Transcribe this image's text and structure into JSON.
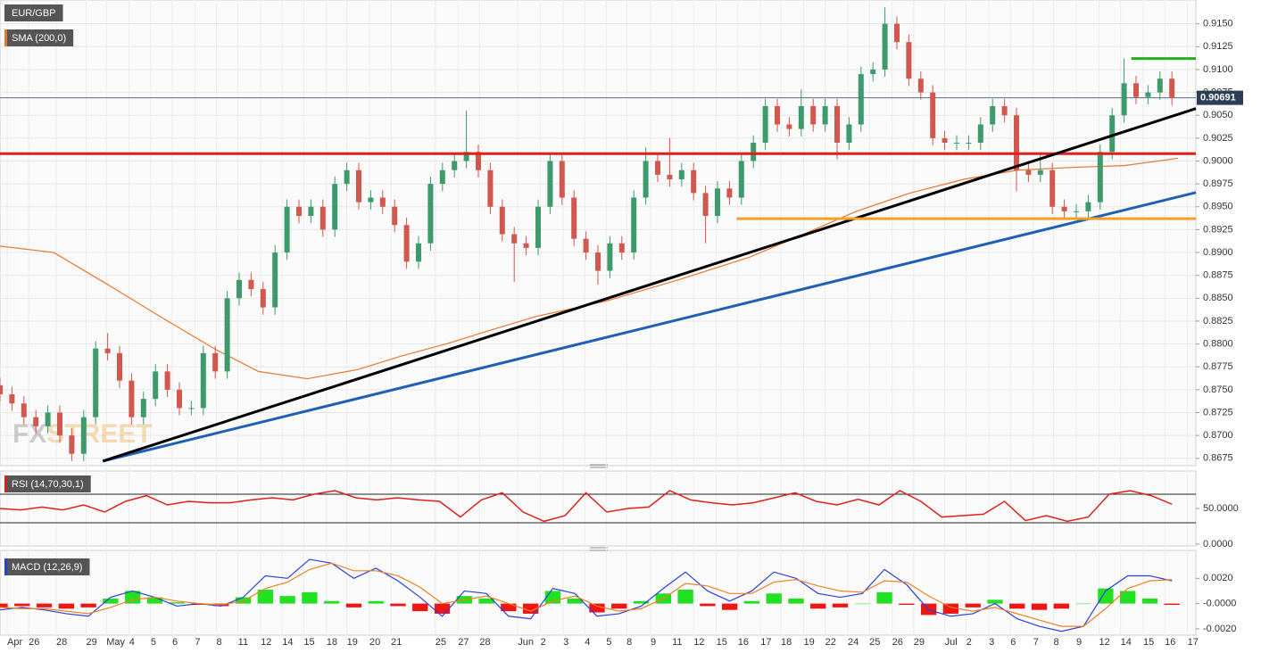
{
  "chart_data": {
    "type": "candlestick",
    "title": "EUR/GBP",
    "watermark": [
      "FX",
      "STREET"
    ],
    "up_color": "#3d9a6a",
    "down_color": "#d0584f",
    "candles": [
      [
        0.8755,
        0.8763,
        0.8737,
        0.8745
      ],
      [
        0.8745,
        0.8753,
        0.8727,
        0.8735
      ],
      [
        0.8735,
        0.8743,
        0.8712,
        0.872
      ],
      [
        0.872,
        0.8728,
        0.8702,
        0.871
      ],
      [
        0.871,
        0.8733,
        0.8702,
        0.8725
      ],
      [
        0.8725,
        0.8733,
        0.8692,
        0.87
      ],
      [
        0.87,
        0.8708,
        0.8672,
        0.868
      ],
      [
        0.868,
        0.8728,
        0.8672,
        0.872
      ],
      [
        0.872,
        0.8803,
        0.8712,
        0.8795
      ],
      [
        0.8795,
        0.8812,
        0.8782,
        0.879
      ],
      [
        0.879,
        0.8798,
        0.8752,
        0.876
      ],
      [
        0.876,
        0.8768,
        0.8712,
        0.872
      ],
      [
        0.872,
        0.8748,
        0.8712,
        0.874
      ],
      [
        0.874,
        0.8778,
        0.8732,
        0.877
      ],
      [
        0.877,
        0.8778,
        0.8742,
        0.875
      ],
      [
        0.875,
        0.8758,
        0.8722,
        0.873
      ],
      [
        0.873,
        0.8738,
        0.8722,
        0.873
      ],
      [
        0.873,
        0.8798,
        0.8722,
        0.879
      ],
      [
        0.879,
        0.8798,
        0.8762,
        0.877
      ],
      [
        0.877,
        0.8858,
        0.8762,
        0.885
      ],
      [
        0.885,
        0.8878,
        0.8842,
        0.887
      ],
      [
        0.887,
        0.8878,
        0.8852,
        0.886
      ],
      [
        0.886,
        0.8868,
        0.8832,
        0.884
      ],
      [
        0.884,
        0.8908,
        0.8832,
        0.89
      ],
      [
        0.89,
        0.8958,
        0.8892,
        0.895
      ],
      [
        0.895,
        0.8958,
        0.8932,
        0.894
      ],
      [
        0.894,
        0.8958,
        0.8932,
        0.895
      ],
      [
        0.895,
        0.8958,
        0.8917,
        0.8925
      ],
      [
        0.8925,
        0.8983,
        0.8917,
        0.8975
      ],
      [
        0.8975,
        0.8998,
        0.8967,
        0.899
      ],
      [
        0.899,
        0.8998,
        0.8947,
        0.8955
      ],
      [
        0.8955,
        0.8968,
        0.8947,
        0.896
      ],
      [
        0.896,
        0.8968,
        0.8942,
        0.895
      ],
      [
        0.895,
        0.8958,
        0.8922,
        0.893
      ],
      [
        0.893,
        0.8938,
        0.8882,
        0.889
      ],
      [
        0.889,
        0.8918,
        0.8882,
        0.891
      ],
      [
        0.891,
        0.8983,
        0.8902,
        0.8975
      ],
      [
        0.8975,
        0.8998,
        0.8967,
        0.899
      ],
      [
        0.899,
        0.9008,
        0.8982,
        0.9
      ],
      [
        0.9,
        0.9055,
        0.8992,
        0.901
      ],
      [
        0.901,
        0.9018,
        0.8982,
        0.899
      ],
      [
        0.899,
        0.8998,
        0.8942,
        0.895
      ],
      [
        0.895,
        0.8958,
        0.8912,
        0.892
      ],
      [
        0.892,
        0.8928,
        0.8868,
        0.891
      ],
      [
        0.891,
        0.8918,
        0.8897,
        0.8905
      ],
      [
        0.8905,
        0.8958,
        0.8897,
        0.895
      ],
      [
        0.895,
        0.9008,
        0.8942,
        0.9
      ],
      [
        0.9,
        0.9008,
        0.8952,
        0.896
      ],
      [
        0.896,
        0.8968,
        0.8907,
        0.8915
      ],
      [
        0.8915,
        0.8923,
        0.8892,
        0.89
      ],
      [
        0.89,
        0.8908,
        0.8865,
        0.888
      ],
      [
        0.888,
        0.8918,
        0.8872,
        0.891
      ],
      [
        0.891,
        0.8918,
        0.8892,
        0.89
      ],
      [
        0.89,
        0.8968,
        0.8892,
        0.896
      ],
      [
        0.896,
        0.9015,
        0.8952,
        0.9
      ],
      [
        0.9,
        0.9008,
        0.8977,
        0.8985
      ],
      [
        0.8985,
        0.9025,
        0.8972,
        0.898
      ],
      [
        0.898,
        0.8998,
        0.8972,
        0.899
      ],
      [
        0.899,
        0.8998,
        0.8957,
        0.8965
      ],
      [
        0.8965,
        0.8973,
        0.891,
        0.894
      ],
      [
        0.894,
        0.8978,
        0.8932,
        0.897
      ],
      [
        0.897,
        0.8978,
        0.8952,
        0.896
      ],
      [
        0.896,
        0.9008,
        0.8952,
        0.9
      ],
      [
        0.9,
        0.9028,
        0.8992,
        0.902
      ],
      [
        0.902,
        0.9068,
        0.9012,
        0.906
      ],
      [
        0.906,
        0.9068,
        0.9032,
        0.904
      ],
      [
        0.904,
        0.9048,
        0.9027,
        0.9035
      ],
      [
        0.9035,
        0.9078,
        0.9027,
        0.906
      ],
      [
        0.906,
        0.9068,
        0.9032,
        0.904
      ],
      [
        0.904,
        0.9068,
        0.9032,
        0.906
      ],
      [
        0.906,
        0.9068,
        0.9002,
        0.902
      ],
      [
        0.902,
        0.9048,
        0.9012,
        0.904
      ],
      [
        0.904,
        0.9103,
        0.9032,
        0.9095
      ],
      [
        0.9095,
        0.9108,
        0.9087,
        0.91
      ],
      [
        0.91,
        0.9168,
        0.9092,
        0.915
      ],
      [
        0.915,
        0.9158,
        0.9122,
        0.913
      ],
      [
        0.913,
        0.9138,
        0.9082,
        0.909
      ],
      [
        0.909,
        0.9098,
        0.9067,
        0.9075
      ],
      [
        0.9075,
        0.9083,
        0.9017,
        0.9025
      ],
      [
        0.9025,
        0.9033,
        0.9012,
        0.902
      ],
      [
        0.902,
        0.9028,
        0.9012,
        0.902
      ],
      [
        0.902,
        0.9028,
        0.9012,
        0.902
      ],
      [
        0.902,
        0.9048,
        0.9012,
        0.904
      ],
      [
        0.904,
        0.9068,
        0.9032,
        0.906
      ],
      [
        0.906,
        0.9068,
        0.9042,
        0.905
      ],
      [
        0.905,
        0.9058,
        0.8967,
        0.899
      ],
      [
        0.899,
        0.8998,
        0.8977,
        0.8985
      ],
      [
        0.8985,
        0.9008,
        0.8977,
        0.899
      ],
      [
        0.899,
        0.8998,
        0.8942,
        0.895
      ],
      [
        0.895,
        0.8958,
        0.8937,
        0.8945
      ],
      [
        0.8945,
        0.8953,
        0.8937,
        0.8945
      ],
      [
        0.8945,
        0.8963,
        0.8937,
        0.8955
      ],
      [
        0.8955,
        0.9018,
        0.8947,
        0.901
      ],
      [
        0.901,
        0.9058,
        0.9002,
        0.905
      ],
      [
        0.905,
        0.9112,
        0.9042,
        0.9085
      ],
      [
        0.9085,
        0.9093,
        0.9062,
        0.907
      ],
      [
        0.907,
        0.9083,
        0.9062,
        0.9075
      ],
      [
        0.9075,
        0.9098,
        0.9067,
        0.909
      ],
      [
        0.909,
        0.9098,
        0.9061,
        0.9069
      ]
    ],
    "xlim": [
      0,
      100
    ],
    "xticks": [
      {
        "value": 0.6,
        "label": "Apr"
      },
      {
        "value": 2.4,
        "label": "26"
      },
      {
        "value": 4.7,
        "label": "28"
      },
      {
        "value": 7.2,
        "label": "29"
      },
      {
        "value": 8.9,
        "label": "May"
      },
      {
        "value": 10.8,
        "label": "4"
      },
      {
        "value": 12.6,
        "label": "5"
      },
      {
        "value": 14.4,
        "label": "6"
      },
      {
        "value": 16.3,
        "label": "7"
      },
      {
        "value": 18.1,
        "label": "8"
      },
      {
        "value": 19.9,
        "label": "11"
      },
      {
        "value": 21.8,
        "label": "12"
      },
      {
        "value": 23.6,
        "label": "14"
      },
      {
        "value": 25.4,
        "label": "15"
      },
      {
        "value": 27.3,
        "label": "18"
      },
      {
        "value": 29.0,
        "label": "19"
      },
      {
        "value": 30.9,
        "label": "20"
      },
      {
        "value": 32.7,
        "label": "21"
      },
      {
        "value": 36.4,
        "label": "25"
      },
      {
        "value": 38.3,
        "label": "27"
      },
      {
        "value": 40.1,
        "label": "28"
      },
      {
        "value": 43.3,
        "label": "Jun"
      },
      {
        "value": 45.2,
        "label": "2"
      },
      {
        "value": 47.1,
        "label": "3"
      },
      {
        "value": 48.9,
        "label": "4"
      },
      {
        "value": 50.7,
        "label": "5"
      },
      {
        "value": 52.4,
        "label": "8"
      },
      {
        "value": 54.4,
        "label": "9"
      },
      {
        "value": 56.2,
        "label": "11"
      },
      {
        "value": 58.0,
        "label": "12"
      },
      {
        "value": 59.9,
        "label": "15"
      },
      {
        "value": 61.7,
        "label": "16"
      },
      {
        "value": 63.6,
        "label": "17"
      },
      {
        "value": 65.3,
        "label": "18"
      },
      {
        "value": 67.2,
        "label": "19"
      },
      {
        "value": 69.0,
        "label": "22"
      },
      {
        "value": 70.9,
        "label": "24"
      },
      {
        "value": 72.7,
        "label": "25"
      },
      {
        "value": 74.6,
        "label": "26"
      },
      {
        "value": 76.4,
        "label": "29"
      },
      {
        "value": 79.0,
        "label": "Jul"
      },
      {
        "value": 80.8,
        "label": "2"
      },
      {
        "value": 82.7,
        "label": "3"
      },
      {
        "value": 84.5,
        "label": "6"
      },
      {
        "value": 86.4,
        "label": "7"
      },
      {
        "value": 88.1,
        "label": "8"
      },
      {
        "value": 90.0,
        "label": "9"
      },
      {
        "value": 91.9,
        "label": "12"
      },
      {
        "value": 93.7,
        "label": "14"
      },
      {
        "value": 95.6,
        "label": "15"
      },
      {
        "value": 97.4,
        "label": "16"
      },
      {
        "value": 99.3,
        "label": "17"
      }
    ],
    "ylim": [
      0.8667,
      0.9176
    ],
    "yticks": [
      0.8675,
      {
        "value": 0.87,
        "label": "0.8700"
      },
      0.8725,
      {
        "value": 0.875,
        "label": "0.8750"
      },
      0.8775,
      {
        "value": 0.88,
        "label": "0.8800"
      },
      0.8825,
      {
        "value": 0.885,
        "label": "0.8850"
      },
      0.8875,
      {
        "value": 0.89,
        "label": "0.8900"
      },
      0.8925,
      {
        "value": 0.895,
        "label": "0.8950"
      },
      0.8975,
      {
        "value": 0.9,
        "label": "0.9000"
      },
      0.9025,
      {
        "value": 0.905,
        "label": "0.9050"
      },
      0.9075,
      {
        "value": 0.91,
        "label": "0.9100"
      },
      0.9125,
      {
        "value": 0.915,
        "label": "0.9150"
      }
    ],
    "grid": true,
    "last_price": 0.90691,
    "overlays": [
      {
        "name": "SMA (200,0)",
        "color": "#e8772e",
        "x": [
          0,
          4.5,
          9,
          13.4,
          17.9,
          21.6,
          25.7,
          29.9,
          33.6,
          37.3,
          41,
          44.8,
          50.7,
          56.7,
          62.7,
          67.2,
          71.6,
          76.1,
          80.6,
          85.1,
          89.6,
          94,
          98.5
        ],
        "values": [
          0.8907,
          0.89,
          0.8865,
          0.883,
          0.8795,
          0.877,
          0.8762,
          0.8772,
          0.8787,
          0.88,
          0.8815,
          0.883,
          0.8847,
          0.887,
          0.8895,
          0.892,
          0.8945,
          0.8965,
          0.898,
          0.899,
          0.8993,
          0.8995,
          0.9003
        ]
      }
    ],
    "levels": [
      {
        "color": "#e0201b",
        "start": [
          0,
          0.9008
        ],
        "end": [
          100,
          0.9008
        ]
      },
      {
        "color": "#1f5fb4",
        "start": [
          8.6,
          0.8672
        ],
        "end": [
          100,
          0.89656
        ]
      },
      {
        "color": "#000000",
        "start": [
          8.6,
          0.8672
        ],
        "end": [
          100,
          0.90573
        ]
      },
      {
        "color": "#f5a020",
        "start": [
          61.6,
          0.8937
        ],
        "end": [
          100,
          0.8937
        ]
      },
      {
        "color": "#22b022",
        "start": [
          94.6,
          0.9112
        ],
        "end": [
          100,
          0.9112
        ]
      }
    ],
    "indicators": [
      {
        "type": "rsi",
        "name": "RSI (14,70,30,1)",
        "color": "#e0201b",
        "ylim": [
          0,
          100
        ],
        "yticks": [
          {
            "value": 50,
            "label": "50.0000"
          },
          {
            "value": 0,
            "label": "0.0000"
          }
        ],
        "levels": [
          30,
          70
        ],
        "values": [
          50,
          48,
          52,
          48,
          55,
          45,
          60,
          68,
          55,
          60,
          58,
          58,
          62,
          65,
          62,
          70,
          75,
          65,
          62,
          65,
          62,
          60,
          38,
          62,
          72,
          45,
          32,
          40,
          72,
          45,
          50,
          52,
          75,
          62,
          58,
          55,
          58,
          65,
          72,
          60,
          55,
          63,
          55,
          75,
          60,
          38,
          40,
          42,
          60,
          33,
          40,
          32,
          38,
          70,
          75,
          68,
          56
        ]
      },
      {
        "type": "macd",
        "name": "MACD (12,26,9)",
        "ylim": [
          -0.0025,
          0.004
        ],
        "yticks": [
          {
            "value": 0.002,
            "label": "0.0020"
          },
          {
            "value": 0,
            "label": "-0.0000"
          },
          {
            "value": -0.002,
            "label": "-0.0020"
          }
        ],
        "series": [
          {
            "color": "#2a3fd8",
            "values": [
              -0.0005,
              -0.0003,
              -0.0005,
              -0.0008,
              -0.001,
              0.0005,
              0.001,
              0.0005,
              -0.0002,
              0.0,
              -0.0002,
              0.0005,
              0.0022,
              0.002,
              0.0035,
              0.0032,
              0.002,
              0.0028,
              0.0018,
              0.0005,
              -0.001,
              0.001,
              0.0008,
              -0.001,
              -0.0012,
              0.0012,
              0.0008,
              -0.001,
              -0.0008,
              -0.0002,
              0.0012,
              0.0025,
              0.001,
              0.0002,
              0.001,
              0.0025,
              0.002,
              0.0008,
              0.0005,
              0.0008,
              0.0027,
              0.0015,
              -0.0005,
              -0.001,
              -0.0008,
              0.0,
              -0.0012,
              -0.0018,
              -0.0022,
              -0.0018,
              0.001,
              0.0022,
              0.0022,
              0.0018
            ]
          },
          {
            "color": "#f08020",
            "values": [
              -0.0003,
              -0.0004,
              -0.0004,
              -0.0006,
              -0.0008,
              -0.0003,
              0.0003,
              0.0005,
              0.0002,
              0.0,
              -0.0001,
              0.0002,
              0.0012,
              0.0017,
              0.0027,
              0.0032,
              0.0026,
              0.0026,
              0.0022,
              0.0013,
              0.0,
              0.0003,
              0.0006,
              0.0,
              -0.0006,
              0.0002,
              0.0006,
              -0.0002,
              -0.0006,
              -0.0004,
              0.0004,
              0.0016,
              0.0014,
              0.0008,
              0.0008,
              0.0017,
              0.0019,
              0.0014,
              0.001,
              0.0009,
              0.0018,
              0.0017,
              0.0006,
              -0.0003,
              -0.0006,
              -0.0003,
              -0.0008,
              -0.0013,
              -0.0018,
              -0.0018,
              -0.0004,
              0.0012,
              0.0018,
              0.0019
            ]
          }
        ],
        "histogram": {
          "up_color": "#22e022",
          "down_color": "#ee1515",
          "values": [
            -0.0003,
            -0.0002,
            -0.0003,
            -0.0004,
            -0.0003,
            0.0004,
            0.001,
            0.0005,
            0.0001,
            -0.0001,
            -0.0002,
            0.0005,
            0.0011,
            0.0006,
            0.0009,
            0.0002,
            -0.0003,
            0.0002,
            -0.0002,
            -0.0006,
            -0.0008,
            0.0006,
            0.0004,
            -0.0006,
            -0.0008,
            0.001,
            0.0004,
            -0.0007,
            -0.0004,
            0.0002,
            0.0008,
            0.0011,
            -0.0002,
            -0.0005,
            0.0002,
            0.0008,
            0.0004,
            -0.0004,
            -0.0003,
            0.0,
            0.0009,
            -0.0001,
            -0.0009,
            -0.0008,
            -0.0003,
            0.0003,
            -0.0004,
            -0.0005,
            -0.0004,
            0.0,
            0.0012,
            0.001,
            0.0004,
            -0.0001
          ]
        }
      }
    ]
  }
}
